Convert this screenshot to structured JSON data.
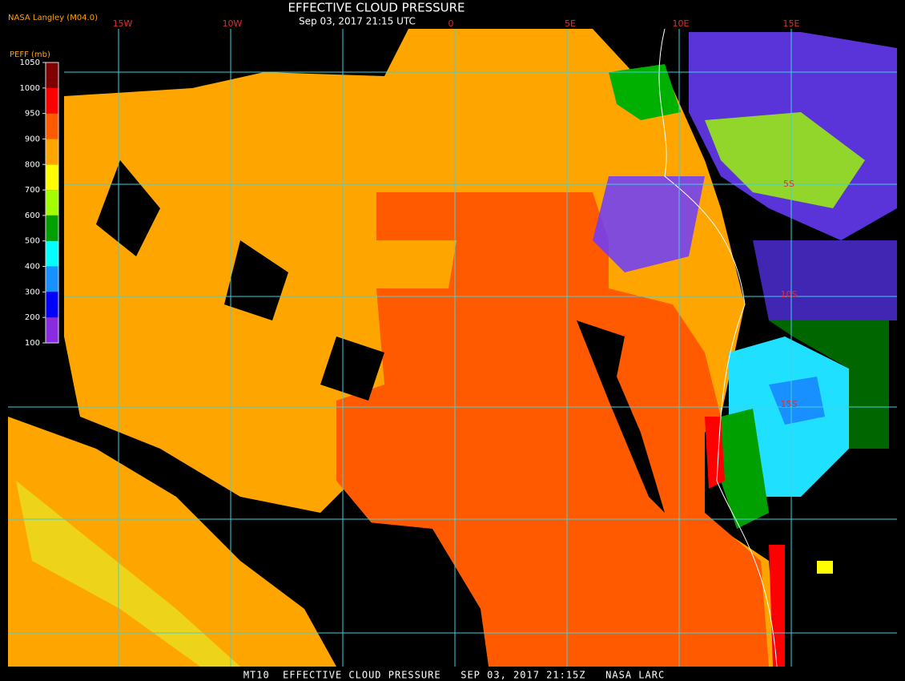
{
  "header": {
    "source": "NASA Langley (M04.0)",
    "title": "EFFECTIVE CLOUD PRESSURE",
    "subtitle": "Sep 03, 2017 21:15 UTC"
  },
  "map": {
    "longitude_labels": [
      "15W",
      "10W",
      "0",
      "5E",
      "10E",
      "15E"
    ],
    "latitude_labels": [
      "5S",
      "10S",
      "15S"
    ]
  },
  "colorbar": {
    "label": "PEFF (mb)",
    "ticks": [
      1050,
      1000,
      950,
      900,
      800,
      700,
      600,
      500,
      400,
      300,
      200,
      100
    ],
    "colors": [
      "#800000",
      "#ff0000",
      "#ff5a00",
      "#ffa500",
      "#ffff00",
      "#a0ff00",
      "#00a000",
      "#00ffff",
      "#1890ff",
      "#0000ff",
      "#8a2be2"
    ]
  },
  "footer": "MT10  EFFECTIVE CLOUD PRESSURE   SEP 03, 2017 21:15Z   NASA LARC"
}
